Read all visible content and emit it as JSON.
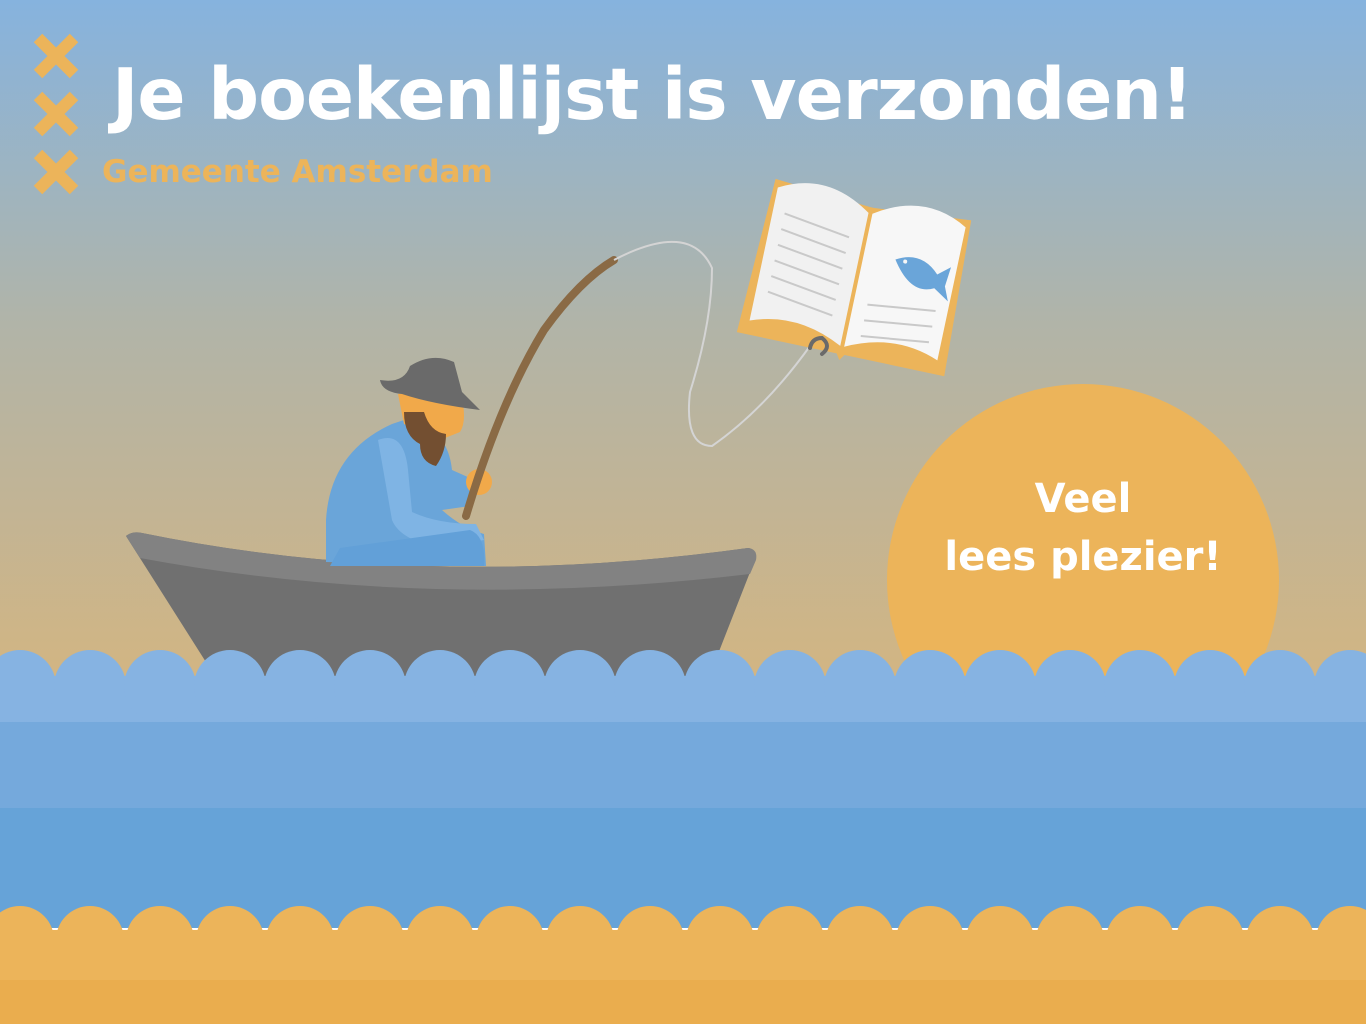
{
  "header": {
    "title": "Je boekenlijst is verzonden!",
    "organization": "Gemeente Amsterdam"
  },
  "sun": {
    "line1": "Veel",
    "line2": "lees plezier!"
  },
  "colors": {
    "sky_top": "#86b3de",
    "sky_bottom": "#d6b57e",
    "accent_orange": "#ecb45a",
    "water_light": "#86b3e2",
    "water_dark": "#66a3d8",
    "boat": "#707070",
    "fisherman_shirt": "#6aa5d9",
    "hat": "#6a6a6a",
    "skin": "#f1a94a"
  },
  "icons": {
    "logo": "amsterdam-triple-x-icon",
    "book": "open-book-icon",
    "fish": "fish-icon"
  }
}
